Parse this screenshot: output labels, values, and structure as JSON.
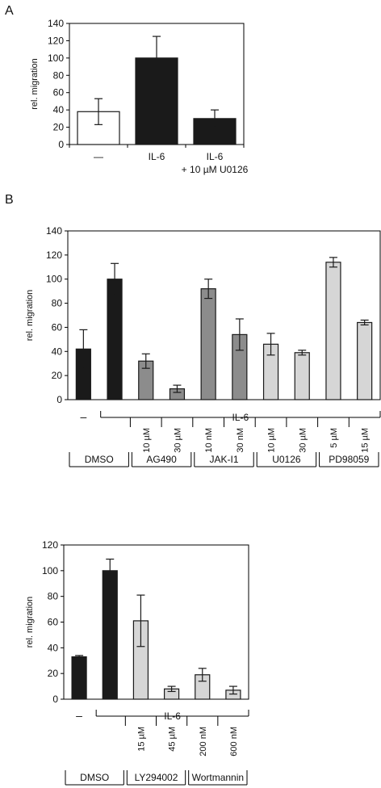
{
  "panel_labels": {
    "a": "A",
    "b": "B"
  },
  "colors": {
    "black": "#1a1a1a",
    "dark_gray": "#8c8c8c",
    "light_gray": "#d6d6d6",
    "white": "#ffffff",
    "axis": "#000000"
  },
  "chart_data": [
    {
      "type": "bar",
      "ylabel": "rel. migration",
      "ylim": [
        0,
        140
      ],
      "yticks": [
        "0",
        "20",
        "40",
        "60",
        "80",
        "100",
        "120",
        "140"
      ],
      "categories": [
        "—",
        "IL-6",
        "IL-6\n+ 10 µM U0126"
      ],
      "category_lines": [
        [
          "—"
        ],
        [
          "IL-6"
        ],
        [
          "IL-6",
          "+ 10 µM U0126"
        ]
      ],
      "values": [
        38,
        100,
        30
      ],
      "errors": [
        15,
        25,
        10
      ],
      "fills": [
        "white",
        "black",
        "black"
      ]
    },
    {
      "type": "bar",
      "ylabel": "rel. migration",
      "ylim": [
        0,
        140
      ],
      "yticks": [
        "0",
        "20",
        "40",
        "60",
        "80",
        "100",
        "120",
        "140"
      ],
      "values": [
        42,
        100,
        32,
        9,
        92,
        54,
        46,
        39,
        114,
        64
      ],
      "errors": [
        16,
        13,
        6,
        3,
        8,
        13,
        9,
        2,
        4,
        2
      ],
      "fills": [
        "black",
        "black",
        "dark_gray",
        "dark_gray",
        "dark_gray",
        "dark_gray",
        "light_gray",
        "light_gray",
        "light_gray",
        "light_gray"
      ],
      "dash_label": "–",
      "bracket_label": "IL-6",
      "conc_labels": [
        "",
        "",
        "10 µM",
        "30 µM",
        "10 nM",
        "30 nM",
        "10 µM",
        "30 µM",
        "5 µM",
        "15 µM"
      ],
      "groups": [
        {
          "label": "DMSO",
          "from": 0,
          "to": 1
        },
        {
          "label": "AG490",
          "from": 2,
          "to": 3
        },
        {
          "label": "JAK-I1",
          "from": 4,
          "to": 5
        },
        {
          "label": "U0126",
          "from": 6,
          "to": 7
        },
        {
          "label": "PD98059",
          "from": 8,
          "to": 9
        }
      ]
    },
    {
      "type": "bar",
      "ylabel": "rel. migration",
      "ylim": [
        0,
        120
      ],
      "yticks": [
        "0",
        "20",
        "40",
        "60",
        "80",
        "100",
        "120"
      ],
      "values": [
        33,
        100,
        61,
        8,
        19,
        7
      ],
      "errors": [
        1,
        9,
        20,
        2,
        5,
        3
      ],
      "fills": [
        "black",
        "black",
        "light_gray",
        "light_gray",
        "light_gray",
        "light_gray"
      ],
      "dash_label": "–",
      "bracket_label": "IL-6",
      "conc_labels": [
        "",
        "",
        "15 µM",
        "45 µM",
        "200 nM",
        "600 nM"
      ],
      "groups": [
        {
          "label": "DMSO",
          "from": 0,
          "to": 1
        },
        {
          "label": "LY294002",
          "from": 2,
          "to": 3
        },
        {
          "label": "Wortmannin",
          "from": 4,
          "to": 5
        }
      ]
    }
  ]
}
